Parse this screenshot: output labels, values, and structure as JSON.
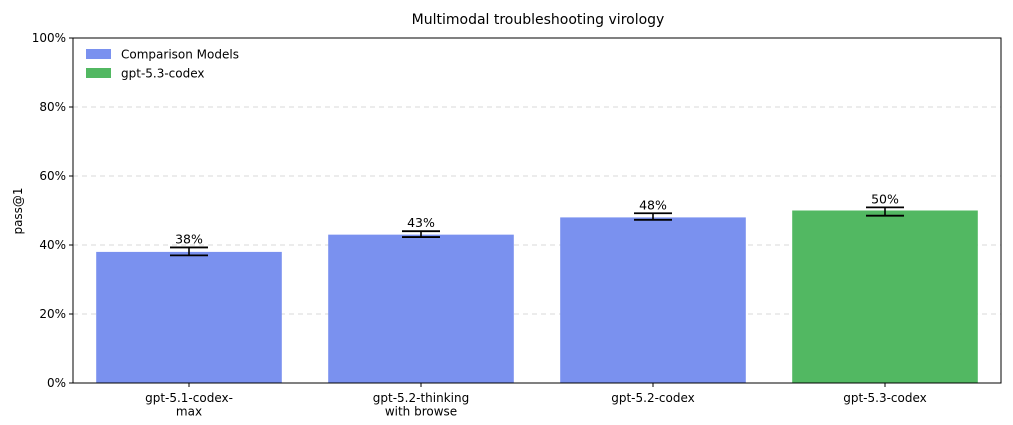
{
  "chart_data": {
    "type": "bar",
    "title": "Multimodal troubleshooting virology",
    "xlabel": "",
    "ylabel": "pass@1",
    "ylim": [
      0,
      100
    ],
    "yticks": [
      0,
      20,
      40,
      60,
      80,
      100
    ],
    "ytick_labels": [
      "0%",
      "20%",
      "40%",
      "60%",
      "80%",
      "100%"
    ],
    "grid": "y-dashed",
    "legend_position": "top-left",
    "legend": [
      {
        "label": "Comparison Models",
        "color": "#7a91ef"
      },
      {
        "label": "gpt-5.3-codex",
        "color": "#52b862"
      }
    ],
    "categories": [
      [
        "gpt-5.1-codex-",
        "max"
      ],
      [
        "gpt-5.2-thinking",
        "with browse"
      ],
      [
        "gpt-5.2-codex"
      ],
      [
        "gpt-5.3-codex"
      ]
    ],
    "values": [
      38,
      43,
      48,
      50
    ],
    "error_low": [
      37,
      42.3,
      47.3,
      48.5
    ],
    "error_high": [
      39.3,
      44,
      49.2,
      50.9
    ],
    "data_labels": [
      "38%",
      "43%",
      "48%",
      "50%"
    ],
    "bar_colors": [
      "#7a91ef",
      "#7a91ef",
      "#7a91ef",
      "#52b862"
    ]
  }
}
